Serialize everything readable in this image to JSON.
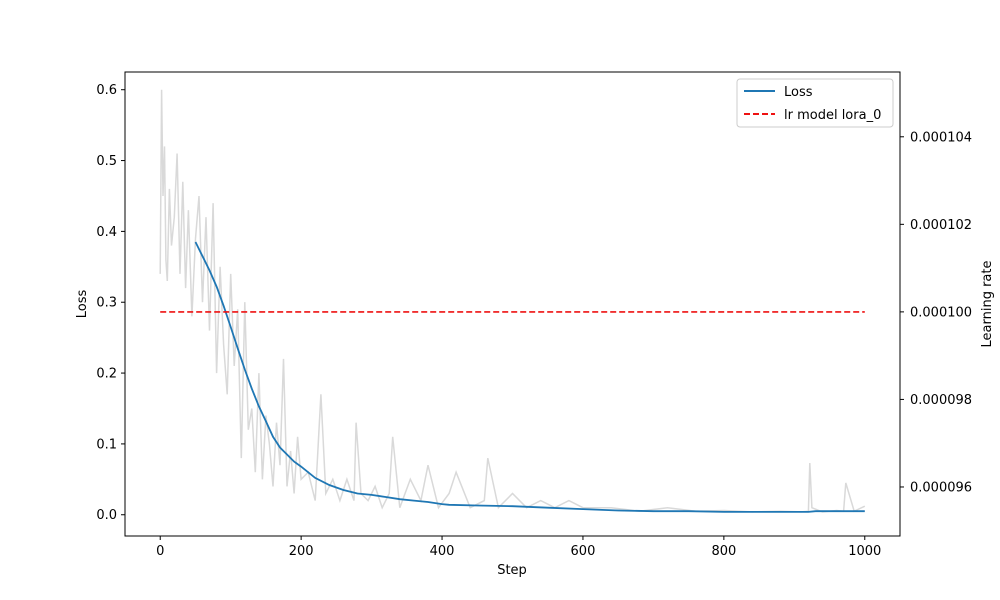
{
  "chart_data": {
    "type": "line",
    "title": "",
    "xlabel": "Step",
    "ylabel": "Loss",
    "y2label": "Learning rate",
    "xlim": [
      -50,
      1050
    ],
    "ylim": [
      -0.03,
      0.625
    ],
    "y2lim": [
      9.488e-05,
      0.00010548
    ],
    "xticks": [
      0,
      200,
      400,
      600,
      800,
      1000
    ],
    "yticks": [
      0.0,
      0.1,
      0.2,
      0.3,
      0.4,
      0.5,
      0.6
    ],
    "y2ticks": [
      9.6e-05,
      9.8e-05,
      0.0001,
      0.000102,
      0.000104
    ],
    "xtick_labels": [
      "0",
      "200",
      "400",
      "600",
      "800",
      "1000"
    ],
    "ytick_labels": [
      "0.0",
      "0.1",
      "0.2",
      "0.3",
      "0.4",
      "0.5",
      "0.6"
    ],
    "y2tick_labels": [
      "0.000096",
      "0.000098",
      "0.000100",
      "0.000102",
      "0.000104"
    ],
    "legend": {
      "placement": "top-right",
      "entries": [
        {
          "label": "Loss",
          "color": "#1f77b4",
          "style": "solid"
        },
        {
          "label": "lr model lora_0",
          "color": "#d62728",
          "style": "dashed"
        }
      ]
    },
    "colors": {
      "loss": "#1f77b4",
      "lr": "#ee1111",
      "raw": "#d9d9d9"
    },
    "series": [
      {
        "name": "Loss",
        "axis": "left",
        "x": [
          50,
          60,
          70,
          80,
          90,
          100,
          110,
          120,
          130,
          140,
          150,
          160,
          170,
          180,
          190,
          200,
          220,
          240,
          260,
          280,
          300,
          320,
          340,
          360,
          380,
          400,
          410,
          450,
          500,
          550,
          600,
          650,
          700,
          750,
          800,
          850,
          900,
          920,
          930,
          960,
          1000
        ],
        "y": [
          0.385,
          0.365,
          0.345,
          0.322,
          0.295,
          0.265,
          0.235,
          0.205,
          0.178,
          0.153,
          0.132,
          0.11,
          0.095,
          0.085,
          0.075,
          0.068,
          0.052,
          0.042,
          0.035,
          0.03,
          0.028,
          0.025,
          0.022,
          0.02,
          0.018,
          0.015,
          0.014,
          0.013,
          0.012,
          0.01,
          0.008,
          0.006,
          0.005,
          0.005,
          0.004,
          0.004,
          0.004,
          0.004,
          0.005,
          0.005,
          0.005
        ]
      },
      {
        "name": "lr model lora_0",
        "axis": "right",
        "x": [
          0,
          1000
        ],
        "y": [
          0.0001,
          0.0001
        ]
      }
    ],
    "raw_loss": {
      "x": [
        0,
        2,
        4,
        6,
        8,
        10,
        13,
        16,
        20,
        24,
        28,
        32,
        36,
        40,
        45,
        50,
        55,
        60,
        65,
        70,
        75,
        80,
        85,
        90,
        95,
        100,
        105,
        110,
        115,
        120,
        125,
        130,
        135,
        140,
        145,
        150,
        155,
        160,
        165,
        170,
        175,
        180,
        185,
        190,
        195,
        200,
        210,
        220,
        228,
        235,
        245,
        255,
        265,
        275,
        278,
        285,
        295,
        305,
        315,
        325,
        330,
        340,
        355,
        370,
        380,
        395,
        410,
        420,
        440,
        460,
        465,
        480,
        500,
        520,
        540,
        560,
        580,
        600,
        640,
        680,
        720,
        760,
        800,
        840,
        880,
        910,
        920,
        922,
        925,
        940,
        960,
        970,
        973,
        985,
        1000
      ],
      "y": [
        0.34,
        0.6,
        0.45,
        0.52,
        0.36,
        0.33,
        0.46,
        0.38,
        0.42,
        0.51,
        0.34,
        0.47,
        0.32,
        0.43,
        0.28,
        0.39,
        0.45,
        0.3,
        0.42,
        0.26,
        0.44,
        0.2,
        0.35,
        0.24,
        0.17,
        0.34,
        0.21,
        0.29,
        0.08,
        0.3,
        0.12,
        0.15,
        0.06,
        0.2,
        0.05,
        0.14,
        0.1,
        0.04,
        0.13,
        0.07,
        0.22,
        0.04,
        0.09,
        0.03,
        0.11,
        0.05,
        0.06,
        0.02,
        0.17,
        0.03,
        0.05,
        0.02,
        0.05,
        0.02,
        0.13,
        0.03,
        0.02,
        0.04,
        0.01,
        0.03,
        0.11,
        0.01,
        0.05,
        0.02,
        0.07,
        0.01,
        0.03,
        0.06,
        0.01,
        0.02,
        0.08,
        0.01,
        0.03,
        0.01,
        0.02,
        0.01,
        0.02,
        0.01,
        0.01,
        0.005,
        0.01,
        0.005,
        0.006,
        0.004,
        0.005,
        0.004,
        0.005,
        0.073,
        0.01,
        0.004,
        0.006,
        0.005,
        0.045,
        0.005,
        0.012
      ]
    }
  }
}
